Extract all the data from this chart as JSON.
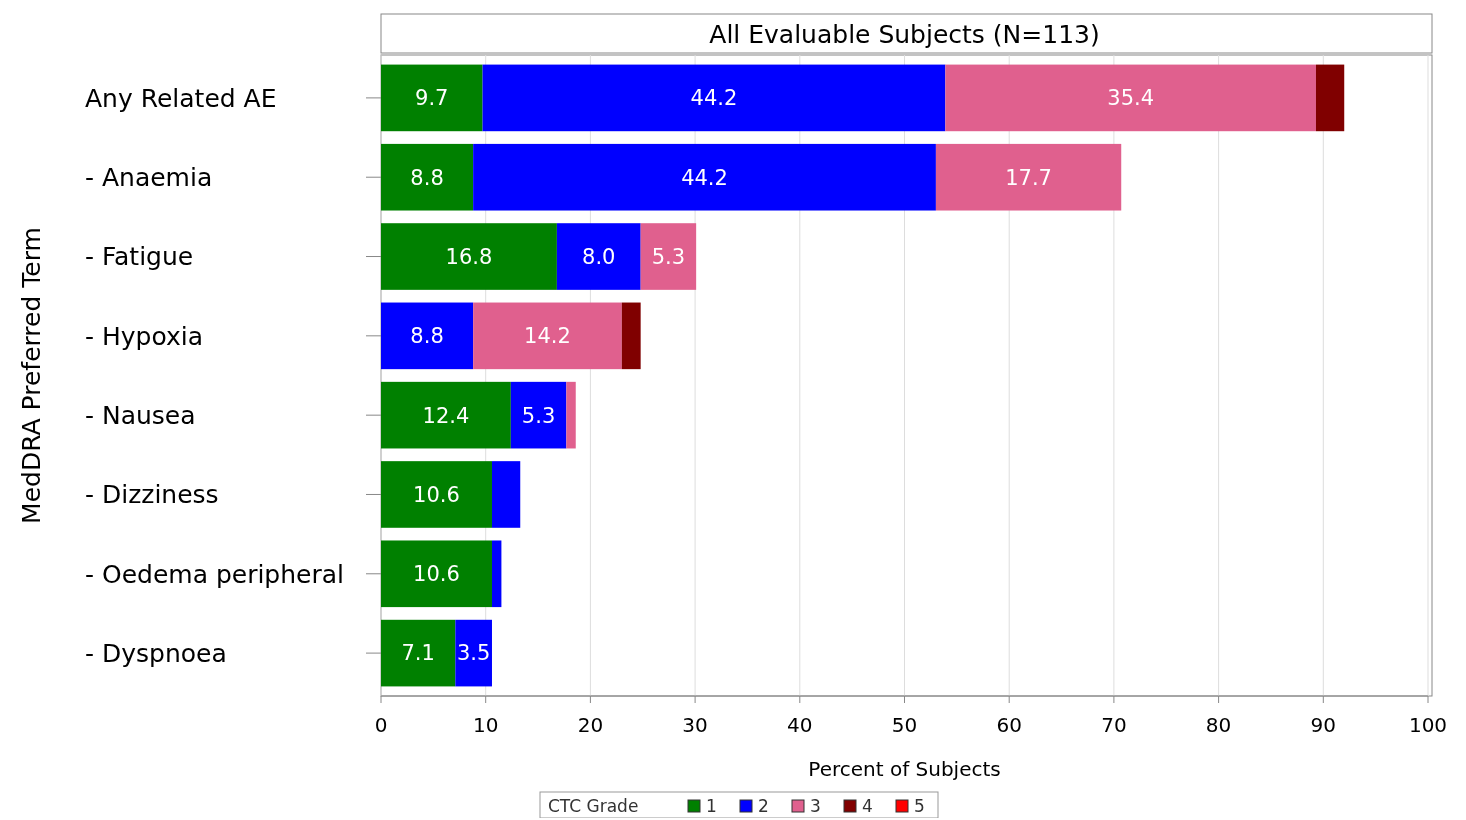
{
  "chart_data": {
    "type": "bar",
    "orientation": "horizontal",
    "stacked": true,
    "title": "All Evaluable Subjects (N=113)",
    "xlabel": "Percent of Subjects",
    "ylabel": "MedDRA Preferred Term",
    "legend_title": "CTC Grade",
    "legend": "bottom",
    "grid": "x",
    "categories": [
      "Any Related AE",
      "- Anaemia",
      "- Fatigue",
      "- Hypoxia",
      "- Nausea",
      "- Dizziness",
      "- Oedema peripheral",
      "- Dyspnoea"
    ],
    "xlim": [
      0,
      100
    ],
    "xticks": [
      0,
      10,
      20,
      30,
      40,
      50,
      60,
      70,
      80,
      90,
      100
    ],
    "series": [
      {
        "name": "1",
        "color": "#008000",
        "values": [
          9.7,
          8.8,
          16.8,
          null,
          12.4,
          10.6,
          10.6,
          7.1
        ],
        "value_labels": [
          "9.7",
          "8.8",
          "16.8",
          null,
          "12.4",
          "10.6",
          "10.6",
          "7.1"
        ]
      },
      {
        "name": "2",
        "color": "#0000ff",
        "values": [
          44.2,
          44.2,
          8.0,
          8.8,
          5.3,
          2.7,
          0.9,
          3.5
        ],
        "value_labels": [
          "44.2",
          "44.2",
          "8.0",
          "8.8",
          "5.3",
          null,
          null,
          "3.5"
        ]
      },
      {
        "name": "3",
        "color": "#e0608e",
        "values": [
          35.4,
          17.7,
          5.3,
          14.2,
          0.9,
          null,
          null,
          null
        ],
        "value_labels": [
          "35.4",
          "17.7",
          "5.3",
          "14.2",
          null,
          null,
          null,
          null
        ]
      },
      {
        "name": "4",
        "color": "#800000",
        "values": [
          2.7,
          null,
          null,
          1.8,
          null,
          null,
          null,
          null
        ],
        "value_labels": [
          null,
          null,
          null,
          null,
          null,
          null,
          null,
          null
        ]
      },
      {
        "name": "5",
        "color": "#ff0000",
        "values": [
          null,
          null,
          null,
          null,
          null,
          null,
          null,
          null
        ],
        "value_labels": [
          null,
          null,
          null,
          null,
          null,
          null,
          null,
          null
        ]
      }
    ]
  }
}
